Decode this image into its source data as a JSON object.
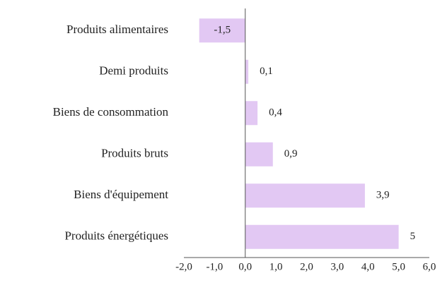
{
  "chart_data": {
    "type": "barh",
    "categories": [
      "Produits alimentaires",
      "Demi produits",
      "Biens de consommation",
      "Produits bruts",
      "Biens d'équipement",
      "Produits énergétiques"
    ],
    "values": [
      -1.5,
      0.1,
      0.4,
      0.9,
      3.9,
      5
    ],
    "value_labels": [
      "-1,5",
      "0,1",
      "0,4",
      "0,9",
      "3,9",
      "5"
    ],
    "color": "#e2c8f3",
    "xlim": [
      -2,
      6
    ],
    "xticks": [
      {
        "value": -2,
        "label": "-2,0"
      },
      {
        "value": -1,
        "label": "-1,0"
      },
      {
        "value": 0,
        "label": "0,0"
      },
      {
        "value": 1,
        "label": "1,0"
      },
      {
        "value": 2,
        "label": "2,0"
      },
      {
        "value": 3,
        "label": "3,0"
      },
      {
        "value": 4,
        "label": "4,0"
      },
      {
        "value": 5,
        "label": "5,0"
      },
      {
        "value": 6,
        "label": "6,0"
      }
    ]
  }
}
